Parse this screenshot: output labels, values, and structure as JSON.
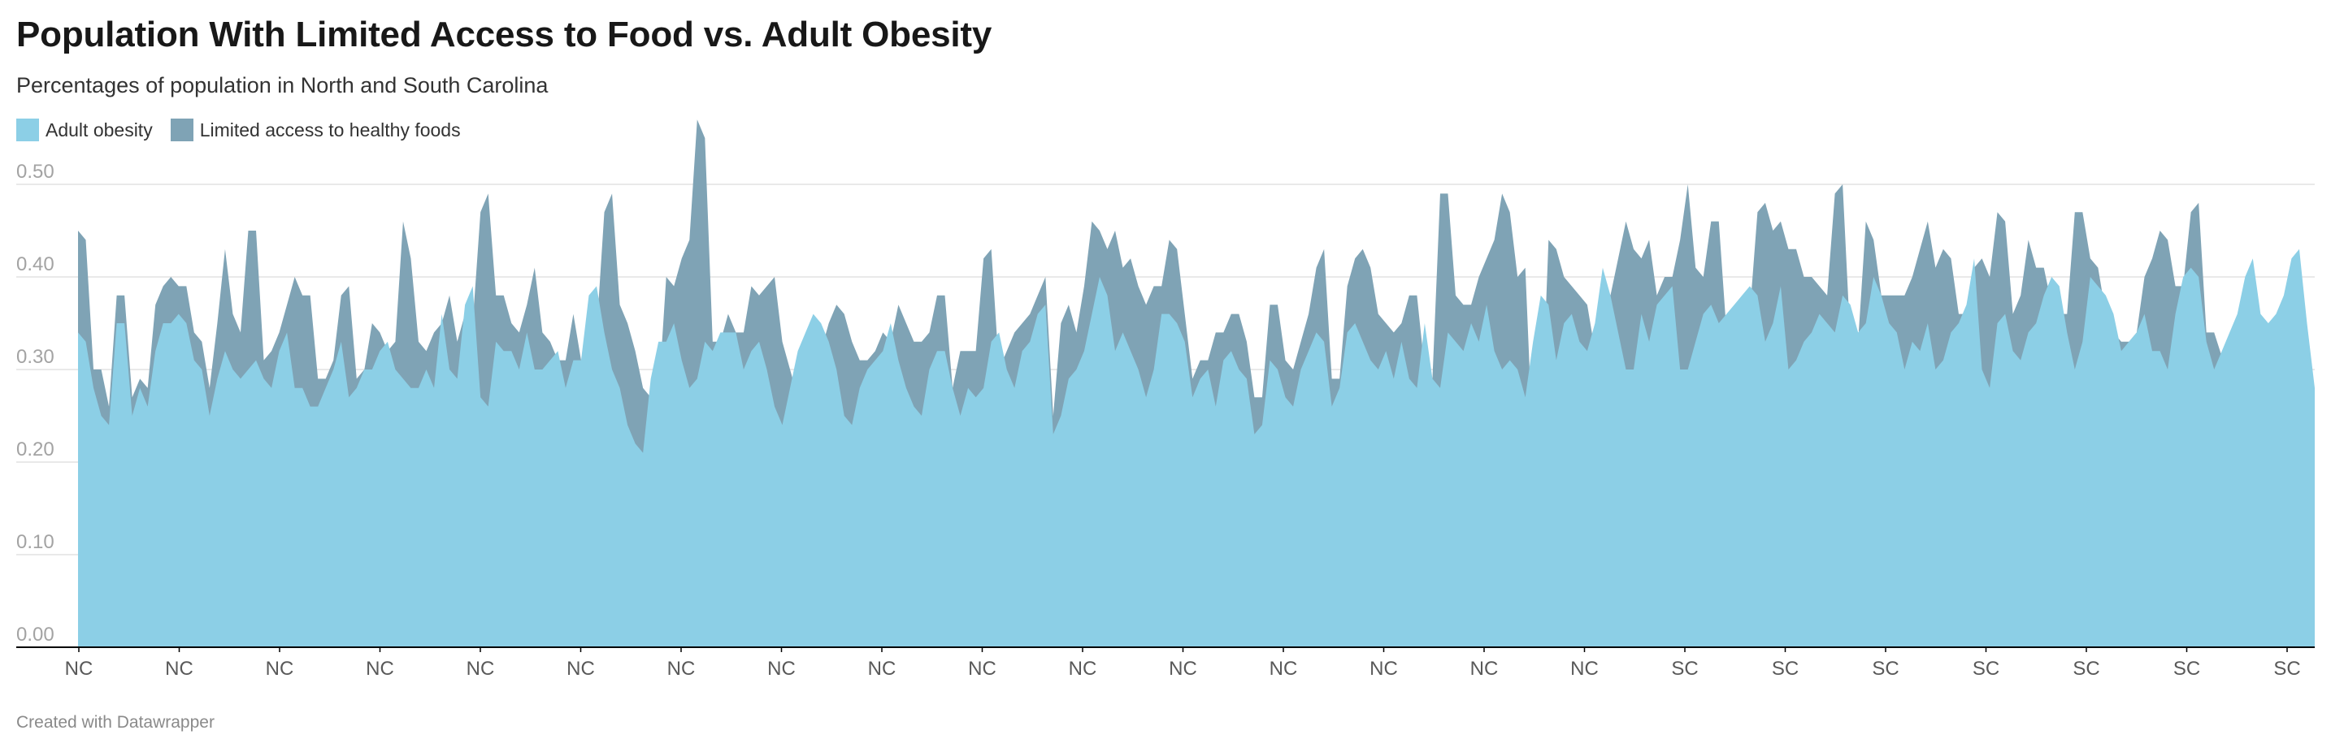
{
  "header": {
    "title": "Population With Limited Access to Food vs. Adult Obesity",
    "subtitle": "Percentages of population in North and South Carolina"
  },
  "legend": [
    {
      "label": "Adult obesity",
      "color": "#8ccfe6"
    },
    {
      "label": "Limited access to healthy foods",
      "color": "#7fa3b5"
    }
  ],
  "footer": {
    "credit": "Created with Datawrapper"
  },
  "colors": {
    "adult_obesity_area": "#8ccfe6",
    "limited_access_area": "#7fa3b5",
    "gridline": "#e2e2e2",
    "baseline": "#000000",
    "y_tick_text": "#a3a3a3",
    "x_tick_text": "#595959"
  },
  "chart_data": {
    "type": "area",
    "title": "Population With Limited Access to Food vs. Adult Obesity",
    "subtitle": "Percentages of population in North and South Carolina",
    "xlabel": "",
    "ylabel": "",
    "ylim": [
      0,
      0.55
    ],
    "yticks": [
      "0.00",
      "0.10",
      "0.20",
      "0.30",
      "0.40",
      "0.50"
    ],
    "grid": true,
    "legend_position": "top-left",
    "x_tick_labels": [
      "NC",
      "NC",
      "NC",
      "NC",
      "NC",
      "NC",
      "NC",
      "NC",
      "NC",
      "NC",
      "NC",
      "NC",
      "NC",
      "NC",
      "NC",
      "NC",
      "SC",
      "SC",
      "SC",
      "SC",
      "SC",
      "SC",
      "SC"
    ],
    "series": [
      {
        "name": "Adult obesity",
        "values": [
          0.34,
          0.33,
          0.28,
          0.25,
          0.24,
          0.35,
          0.35,
          0.25,
          0.28,
          0.26,
          0.32,
          0.35,
          0.35,
          0.36,
          0.35,
          0.31,
          0.3,
          0.25,
          0.29,
          0.32,
          0.3,
          0.29,
          0.3,
          0.31,
          0.29,
          0.28,
          0.32,
          0.34,
          0.28,
          0.28,
          0.26,
          0.26,
          0.28,
          0.3,
          0.33,
          0.27,
          0.28,
          0.3,
          0.3,
          0.32,
          0.33,
          0.3,
          0.29,
          0.28,
          0.28,
          0.3,
          0.28,
          0.36,
          0.3,
          0.29,
          0.37,
          0.39,
          0.27,
          0.26,
          0.33,
          0.32,
          0.32,
          0.3,
          0.34,
          0.3,
          0.3,
          0.31,
          0.32,
          0.28,
          0.31,
          0.31,
          0.38,
          0.39,
          0.34,
          0.3,
          0.28,
          0.24,
          0.22,
          0.21,
          0.29,
          0.33,
          0.33,
          0.35,
          0.31,
          0.28,
          0.29,
          0.33,
          0.32,
          0.34,
          0.34,
          0.34,
          0.3,
          0.32,
          0.33,
          0.3,
          0.26,
          0.24,
          0.28,
          0.32,
          0.34,
          0.36,
          0.35,
          0.33,
          0.3,
          0.25,
          0.24,
          0.28,
          0.3,
          0.31,
          0.32,
          0.35,
          0.31,
          0.28,
          0.26,
          0.25,
          0.3,
          0.32,
          0.32,
          0.28,
          0.25,
          0.28,
          0.27,
          0.28,
          0.33,
          0.34,
          0.3,
          0.28,
          0.32,
          0.33,
          0.36,
          0.37,
          0.23,
          0.25,
          0.29,
          0.3,
          0.32,
          0.36,
          0.4,
          0.38,
          0.32,
          0.34,
          0.32,
          0.3,
          0.27,
          0.3,
          0.36,
          0.36,
          0.35,
          0.33,
          0.27,
          0.29,
          0.3,
          0.26,
          0.31,
          0.32,
          0.3,
          0.29,
          0.23,
          0.24,
          0.31,
          0.3,
          0.27,
          0.26,
          0.3,
          0.32,
          0.34,
          0.33,
          0.26,
          0.28,
          0.34,
          0.35,
          0.33,
          0.31,
          0.3,
          0.32,
          0.29,
          0.33,
          0.29,
          0.28,
          0.35,
          0.29,
          0.28,
          0.34,
          0.33,
          0.32,
          0.35,
          0.33,
          0.37,
          0.32,
          0.3,
          0.31,
          0.3,
          0.27,
          0.33,
          0.38,
          0.37,
          0.31,
          0.35,
          0.36,
          0.33,
          0.32,
          0.35,
          0.41,
          0.38,
          0.34,
          0.3,
          0.3,
          0.36,
          0.33,
          0.37,
          0.38,
          0.39,
          0.3,
          0.3,
          0.33,
          0.36,
          0.37,
          0.35,
          0.36,
          0.37,
          0.38,
          0.39,
          0.38,
          0.33,
          0.35,
          0.39,
          0.3,
          0.31,
          0.33,
          0.34,
          0.36,
          0.35,
          0.34,
          0.38,
          0.37,
          0.34,
          0.35,
          0.4,
          0.38,
          0.35,
          0.34,
          0.3,
          0.33,
          0.32,
          0.35,
          0.3,
          0.31,
          0.34,
          0.35,
          0.37,
          0.42,
          0.3,
          0.28,
          0.35,
          0.36,
          0.32,
          0.31,
          0.34,
          0.35,
          0.38,
          0.4,
          0.39,
          0.34,
          0.3,
          0.33,
          0.4,
          0.39,
          0.38,
          0.36,
          0.32,
          0.33,
          0.34,
          0.36,
          0.32,
          0.32,
          0.3,
          0.36,
          0.4,
          0.41,
          0.4,
          0.33,
          0.3,
          0.32,
          0.34,
          0.36,
          0.4,
          0.42,
          0.36,
          0.35,
          0.36,
          0.38,
          0.42,
          0.43,
          0.35,
          0.28
        ]
      },
      {
        "name": "Limited access to healthy foods",
        "values": [
          0.45,
          0.44,
          0.3,
          0.3,
          0.26,
          0.38,
          0.38,
          0.27,
          0.29,
          0.28,
          0.37,
          0.39,
          0.4,
          0.39,
          0.39,
          0.34,
          0.33,
          0.28,
          0.35,
          0.43,
          0.36,
          0.34,
          0.45,
          0.45,
          0.31,
          0.32,
          0.34,
          0.37,
          0.4,
          0.38,
          0.38,
          0.29,
          0.29,
          0.31,
          0.38,
          0.39,
          0.29,
          0.3,
          0.35,
          0.34,
          0.32,
          0.33,
          0.46,
          0.42,
          0.33,
          0.32,
          0.34,
          0.35,
          0.38,
          0.33,
          0.36,
          0.35,
          0.47,
          0.49,
          0.38,
          0.38,
          0.35,
          0.34,
          0.37,
          0.41,
          0.34,
          0.33,
          0.31,
          0.31,
          0.36,
          0.31,
          0.33,
          0.34,
          0.47,
          0.49,
          0.37,
          0.35,
          0.32,
          0.28,
          0.27,
          0.27,
          0.4,
          0.39,
          0.42,
          0.44,
          0.57,
          0.55,
          0.33,
          0.33,
          0.36,
          0.34,
          0.34,
          0.39,
          0.38,
          0.39,
          0.4,
          0.33,
          0.3,
          0.27,
          0.26,
          0.33,
          0.32,
          0.35,
          0.37,
          0.36,
          0.33,
          0.31,
          0.31,
          0.32,
          0.34,
          0.33,
          0.37,
          0.35,
          0.33,
          0.33,
          0.34,
          0.38,
          0.38,
          0.28,
          0.32,
          0.32,
          0.32,
          0.42,
          0.43,
          0.3,
          0.32,
          0.34,
          0.35,
          0.36,
          0.38,
          0.4,
          0.25,
          0.35,
          0.37,
          0.34,
          0.39,
          0.46,
          0.45,
          0.43,
          0.45,
          0.41,
          0.42,
          0.39,
          0.37,
          0.39,
          0.39,
          0.44,
          0.43,
          0.36,
          0.29,
          0.31,
          0.31,
          0.34,
          0.34,
          0.36,
          0.36,
          0.33,
          0.27,
          0.27,
          0.37,
          0.37,
          0.31,
          0.3,
          0.33,
          0.36,
          0.41,
          0.43,
          0.29,
          0.29,
          0.39,
          0.42,
          0.43,
          0.41,
          0.36,
          0.35,
          0.34,
          0.35,
          0.38,
          0.38,
          0.3,
          0.29,
          0.49,
          0.49,
          0.38,
          0.37,
          0.37,
          0.4,
          0.42,
          0.44,
          0.49,
          0.47,
          0.4,
          0.41,
          0.21,
          0.22,
          0.44,
          0.43,
          0.4,
          0.39,
          0.38,
          0.37,
          0.32,
          0.33,
          0.38,
          0.42,
          0.46,
          0.43,
          0.42,
          0.44,
          0.38,
          0.4,
          0.4,
          0.44,
          0.5,
          0.41,
          0.4,
          0.46,
          0.46,
          0.34,
          0.35,
          0.38,
          0.36,
          0.47,
          0.48,
          0.45,
          0.46,
          0.43,
          0.43,
          0.4,
          0.4,
          0.39,
          0.38,
          0.49,
          0.5,
          0.33,
          0.33,
          0.46,
          0.44,
          0.38,
          0.38,
          0.38,
          0.38,
          0.4,
          0.43,
          0.46,
          0.41,
          0.43,
          0.42,
          0.36,
          0.36,
          0.41,
          0.42,
          0.4,
          0.47,
          0.46,
          0.36,
          0.38,
          0.44,
          0.41,
          0.41,
          0.37,
          0.36,
          0.36,
          0.47,
          0.47,
          0.42,
          0.41,
          0.36,
          0.34,
          0.33,
          0.33,
          0.34,
          0.4,
          0.42,
          0.45,
          0.44,
          0.39,
          0.39,
          0.47,
          0.48,
          0.34,
          0.34
        ]
      }
    ]
  }
}
